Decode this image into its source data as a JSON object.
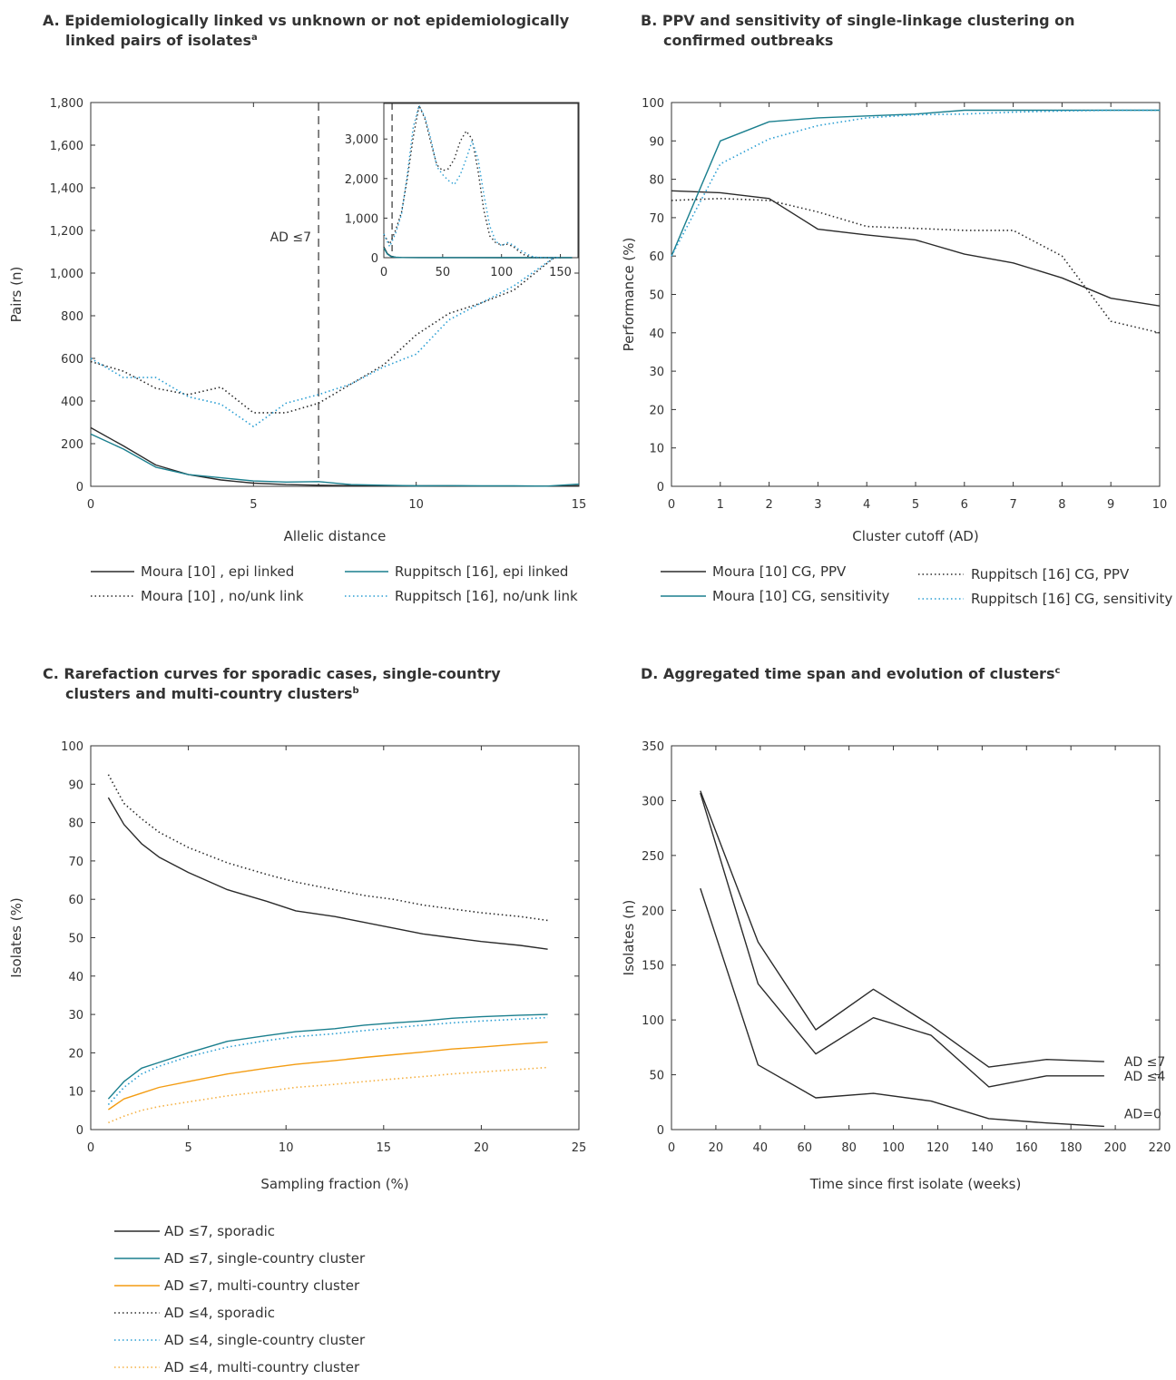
{
  "colors": {
    "black": "#2b2b2b",
    "teal": "#1a7f8e",
    "blue": "#2a9ed3",
    "orange": "#f39c12",
    "orange_light": "#f5b041"
  },
  "chart_data": [
    {
      "id": "A",
      "type": "line",
      "title": [
        "A. Epidemiologically linked vs unknown or not epidemiologically",
        "linked pairs of isolates",
        "a"
      ],
      "xlabel": "Allelic distance",
      "ylabel": "Pairs (n)",
      "xlim": [
        0,
        15
      ],
      "ylim": [
        0,
        1800
      ],
      "xticks": [
        0,
        5,
        10,
        15
      ],
      "xtick_labels": [
        "0",
        "5",
        "10",
        "15"
      ],
      "yticks": [
        0,
        200,
        400,
        600,
        800,
        1000,
        1200,
        1400,
        1600,
        1800
      ],
      "ytick_labels": [
        "0",
        "200",
        "400",
        "600",
        "800",
        "1,000",
        "1,200",
        "1,400",
        "1,600",
        "1,800"
      ],
      "vline": {
        "x": 7,
        "label": "AD ≤7"
      },
      "series": [
        {
          "name": "Moura [10] , epi linked",
          "color": "black",
          "dash": "solid",
          "x": [
            0,
            1,
            2,
            3,
            4,
            5,
            6,
            7,
            8,
            9,
            10,
            11,
            12,
            13,
            14,
            15
          ],
          "y": [
            275,
            190,
            100,
            55,
            30,
            15,
            8,
            5,
            3,
            2,
            2,
            2,
            1,
            1,
            1,
            3
          ]
        },
        {
          "name": "Ruppitsch [16], epi linked",
          "color": "teal",
          "dash": "solid",
          "x": [
            0,
            1,
            2,
            3,
            4,
            5,
            6,
            7,
            8,
            9,
            10,
            11,
            12,
            13,
            14,
            15
          ],
          "y": [
            245,
            175,
            90,
            55,
            40,
            25,
            20,
            22,
            8,
            5,
            2,
            3,
            2,
            2,
            1,
            10
          ]
        },
        {
          "name": "Moura [10] , no/unk link",
          "color": "black",
          "dash": "dot",
          "x": [
            0,
            1,
            2,
            3,
            4,
            5,
            6,
            7,
            8,
            9,
            10,
            11,
            12,
            13,
            14.3
          ],
          "y": [
            585,
            540,
            460,
            430,
            465,
            345,
            345,
            390,
            480,
            570,
            710,
            810,
            860,
            920,
            1080
          ]
        },
        {
          "name": "Ruppitsch [16], no/unk link",
          "color": "blue",
          "dash": "dot",
          "x": [
            0,
            1,
            2,
            3,
            4,
            5,
            6,
            7,
            8,
            9,
            10,
            11,
            12,
            13,
            14.3
          ],
          "y": [
            600,
            510,
            510,
            420,
            385,
            280,
            390,
            430,
            480,
            560,
            620,
            780,
            860,
            940,
            1080
          ]
        }
      ],
      "inset": {
        "xlim": [
          0,
          165
        ],
        "ylim": [
          0,
          3900
        ],
        "xticks": [
          0,
          50,
          100,
          150
        ],
        "xtick_labels": [
          "0",
          "50",
          "100",
          "150"
        ],
        "yticks": [
          0,
          1000,
          2000,
          3000
        ],
        "ytick_labels": [
          "0",
          "1,000",
          "2,000",
          "3,000"
        ],
        "vline": 7,
        "series": [
          {
            "color": "black",
            "dash": "solid",
            "x": [
              0,
              3,
              6,
              10,
              15,
              30,
              60,
              100,
              160
            ],
            "y": [
              270,
              100,
              40,
              10,
              5,
              3,
              2,
              1,
              1
            ]
          },
          {
            "color": "teal",
            "dash": "solid",
            "x": [
              0,
              3,
              6,
              10,
              15,
              40,
              100,
              160
            ],
            "y": [
              245,
              90,
              30,
              12,
              5,
              3,
              2,
              2
            ]
          },
          {
            "color": "black",
            "dash": "dot",
            "x": [
              0,
              5,
              10,
              15,
              20,
              25,
              30,
              35,
              40,
              45,
              50,
              55,
              60,
              65,
              70,
              75,
              80,
              85,
              90,
              95,
              100,
              105,
              110,
              115,
              120,
              125,
              130,
              140,
              150
            ],
            "y": [
              580,
              345,
              700,
              1150,
              2000,
              3050,
              3850,
              3500,
              2900,
              2350,
              2200,
              2250,
              2500,
              2950,
              3200,
              3000,
              2200,
              1200,
              550,
              380,
              320,
              340,
              280,
              150,
              60,
              20,
              5,
              2,
              0
            ]
          },
          {
            "color": "blue",
            "dash": "dot",
            "x": [
              0,
              5,
              10,
              15,
              20,
              25,
              30,
              35,
              40,
              45,
              50,
              55,
              60,
              65,
              70,
              75,
              80,
              85,
              90,
              95,
              100,
              105,
              110,
              115,
              120,
              125,
              130,
              140,
              150
            ],
            "y": [
              600,
              280,
              620,
              1100,
              2100,
              3300,
              3850,
              3550,
              3000,
              2300,
              2100,
              1950,
              1850,
              2100,
              2500,
              2950,
              2500,
              1600,
              800,
              420,
              300,
              380,
              320,
              200,
              120,
              40,
              10,
              2,
              0
            ]
          }
        ]
      },
      "legend": [
        "Moura [10] , epi linked",
        "Ruppitsch [16], epi linked",
        "Moura [10] , no/unk link",
        "Ruppitsch [16], no/unk link"
      ]
    },
    {
      "id": "B",
      "type": "line",
      "title": [
        "B. PPV and sensitivity of single-linkage clustering on",
        "confirmed outbreaks"
      ],
      "xlabel": "Cluster cutoff (AD)",
      "ylabel": "Performance (%)",
      "xlim": [
        0,
        10
      ],
      "ylim": [
        0,
        100
      ],
      "xticks": [
        0,
        1,
        2,
        3,
        4,
        5,
        6,
        7,
        8,
        9,
        10
      ],
      "xtick_labels": [
        "0",
        "1",
        "2",
        "3",
        "4",
        "5",
        "6",
        "7",
        "8",
        "9",
        "10"
      ],
      "yticks": [
        0,
        10,
        20,
        30,
        40,
        50,
        60,
        70,
        80,
        90,
        100
      ],
      "ytick_labels": [
        "0",
        "10",
        "20",
        "30",
        "40",
        "50",
        "60",
        "70",
        "80",
        "90",
        "100"
      ],
      "series": [
        {
          "name": "Moura [10] CG, PPV",
          "color": "black",
          "dash": "solid",
          "x": [
            0,
            1,
            2,
            3,
            4,
            5,
            6,
            7,
            8,
            9,
            10
          ],
          "y": [
            77,
            76.5,
            75,
            67,
            65.5,
            64.2,
            60.5,
            58.2,
            54.3,
            49,
            47
          ]
        },
        {
          "name": "Moura [10] CG, sensitivity",
          "color": "teal",
          "dash": "solid",
          "x": [
            0,
            1,
            2,
            3,
            4,
            5,
            6,
            7,
            8,
            9,
            10
          ],
          "y": [
            60,
            90,
            95,
            96,
            96.5,
            97,
            98,
            98,
            98,
            98,
            98
          ]
        },
        {
          "name": "Ruppitsch [16] CG, PPV",
          "color": "black",
          "dash": "dot",
          "x": [
            0,
            1,
            2,
            3,
            4,
            5,
            6,
            7,
            8,
            9,
            10
          ],
          "y": [
            74.5,
            75,
            74.5,
            71.5,
            67.7,
            67.2,
            66.7,
            66.7,
            60,
            43,
            40
          ]
        },
        {
          "name": "Ruppitsch [16] CG, sensitivity",
          "color": "blue",
          "dash": "dot",
          "x": [
            0,
            1,
            2,
            3,
            4,
            5,
            6,
            7,
            8,
            9,
            10
          ],
          "y": [
            60,
            84,
            90.5,
            94,
            96,
            96.8,
            97,
            97.5,
            97.8,
            98,
            98
          ]
        }
      ],
      "legend": [
        "Moura [10] CG, PPV",
        "Ruppitsch [16] CG, PPV",
        "Moura [10] CG, sensitivity",
        "Ruppitsch [16] CG, sensitivity"
      ]
    },
    {
      "id": "C",
      "type": "line",
      "title": [
        "C. Rarefaction curves for sporadic cases, single-country",
        "clusters and multi-country clusters",
        "b"
      ],
      "xlabel": "Sampling fraction (%)",
      "ylabel": "Isolates (%)",
      "xlim": [
        0,
        25
      ],
      "ylim": [
        0,
        100
      ],
      "xticks": [
        0,
        5,
        10,
        15,
        20,
        25
      ],
      "xtick_labels": [
        "0",
        "5",
        "10",
        "15",
        "20",
        "25"
      ],
      "yticks": [
        0,
        10,
        20,
        30,
        40,
        50,
        60,
        70,
        80,
        90,
        100
      ],
      "ytick_labels": [
        "0",
        "10",
        "20",
        "30",
        "40",
        "50",
        "60",
        "70",
        "80",
        "90",
        "100"
      ],
      "series": [
        {
          "name": "AD ≤7, sporadic",
          "color": "black",
          "dash": "solid",
          "x": [
            0.9,
            1.7,
            2.6,
            3.5,
            5,
            7,
            9,
            10.5,
            12.5,
            14,
            15.5,
            17,
            18.5,
            20,
            22,
            23.4
          ],
          "y": [
            86.5,
            79.5,
            74.5,
            71,
            67,
            62.5,
            59.5,
            57,
            55.5,
            54,
            52.5,
            51,
            50,
            49,
            48,
            47
          ]
        },
        {
          "name": "AD ≤7, single-country cluster",
          "color": "teal",
          "dash": "solid",
          "x": [
            0.9,
            1.7,
            2.6,
            3.5,
            5,
            7,
            9,
            10.5,
            12.5,
            14,
            15.5,
            17,
            18.5,
            20,
            22,
            23.4
          ],
          "y": [
            8,
            12.5,
            16,
            17.5,
            20,
            23,
            24.5,
            25.5,
            26.3,
            27.2,
            27.8,
            28.3,
            29,
            29.4,
            29.8,
            30
          ]
        },
        {
          "name": "AD ≤7, multi-country cluster",
          "color": "orange",
          "dash": "solid",
          "x": [
            0.9,
            1.7,
            2.6,
            3.5,
            5,
            7,
            9,
            10.5,
            12.5,
            14,
            15.5,
            17,
            18.5,
            20,
            22,
            23.4
          ],
          "y": [
            5.2,
            8,
            9.5,
            11,
            12.5,
            14.5,
            16,
            17,
            18,
            18.8,
            19.5,
            20.2,
            21,
            21.5,
            22.3,
            22.8
          ]
        },
        {
          "name": "AD ≤4, sporadic",
          "color": "black",
          "dash": "dot",
          "x": [
            0.9,
            1.7,
            2.6,
            3.5,
            5,
            7,
            9,
            10.5,
            12.5,
            14,
            15.5,
            17,
            18.5,
            20,
            22,
            23.4
          ],
          "y": [
            92.5,
            85,
            81,
            77.5,
            73.5,
            69.5,
            66.5,
            64.5,
            62.5,
            61,
            60,
            58.5,
            57.5,
            56.5,
            55.5,
            54.5
          ]
        },
        {
          "name": "AD ≤4, single-country cluster",
          "color": "blue",
          "dash": "dot",
          "x": [
            0.9,
            1.7,
            2.6,
            3.5,
            5,
            7,
            9,
            10.5,
            12.5,
            14,
            15.5,
            17,
            18.5,
            20,
            22,
            23.4
          ],
          "y": [
            6.5,
            11,
            14.5,
            16.5,
            19,
            21.5,
            23.2,
            24.2,
            25,
            25.8,
            26.5,
            27.2,
            27.8,
            28.3,
            28.8,
            29.2
          ]
        },
        {
          "name": "AD ≤4, multi-country cluster",
          "color": "orange_light",
          "dash": "dot",
          "x": [
            0.9,
            1.7,
            2.6,
            3.5,
            5,
            7,
            9,
            10.5,
            12.5,
            14,
            15.5,
            17,
            18.5,
            20,
            22,
            23.4
          ],
          "y": [
            1.8,
            3.5,
            5,
            6,
            7.2,
            8.8,
            10,
            11,
            11.8,
            12.5,
            13.2,
            13.8,
            14.5,
            15,
            15.7,
            16.2
          ]
        }
      ],
      "legend": [
        "AD ≤7, sporadic",
        "AD ≤7, single-country cluster",
        "AD ≤7, multi-country cluster",
        "AD ≤4, sporadic",
        "AD ≤4, single-country cluster",
        "AD ≤4, multi-country cluster"
      ]
    },
    {
      "id": "D",
      "type": "line",
      "title": [
        "D. Aggregated time span and evolution of clusters",
        "c"
      ],
      "xlabel": "Time since first isolate (weeks)",
      "ylabel": "Isolates (n)",
      "xlim": [
        0,
        220
      ],
      "ylim": [
        0,
        350
      ],
      "xticks": [
        0,
        20,
        40,
        60,
        80,
        100,
        120,
        140,
        160,
        180,
        200,
        220
      ],
      "xtick_labels": [
        "0",
        "20",
        "40",
        "60",
        "80",
        "100",
        "120",
        "140",
        "160",
        "180",
        "200",
        "220"
      ],
      "yticks": [
        0,
        50,
        100,
        150,
        200,
        250,
        300,
        350
      ],
      "ytick_labels": [
        "0",
        "50",
        "100",
        "150",
        "200",
        "250",
        "300",
        "350"
      ],
      "series": [
        {
          "name": "AD ≤7",
          "color": "black",
          "dash": "solid",
          "x": [
            13,
            39,
            65,
            91,
            117,
            143,
            169,
            195
          ],
          "y": [
            309,
            171,
            91,
            128,
            95,
            57,
            64,
            62
          ]
        },
        {
          "name": "AD ≤4",
          "color": "black",
          "dash": "solid",
          "x": [
            13,
            39,
            65,
            91,
            117,
            143,
            169,
            195
          ],
          "y": [
            307,
            133,
            69,
            102,
            86,
            39,
            49,
            49
          ]
        },
        {
          "name": "AD=0",
          "color": "black",
          "dash": "solid",
          "x": [
            13,
            39,
            65,
            91,
            117,
            143,
            169,
            195
          ],
          "y": [
            220,
            59,
            29,
            33,
            26,
            10,
            6,
            3
          ]
        }
      ],
      "end_labels": [
        "AD ≤7",
        "AD ≤4",
        "AD=0"
      ]
    }
  ]
}
